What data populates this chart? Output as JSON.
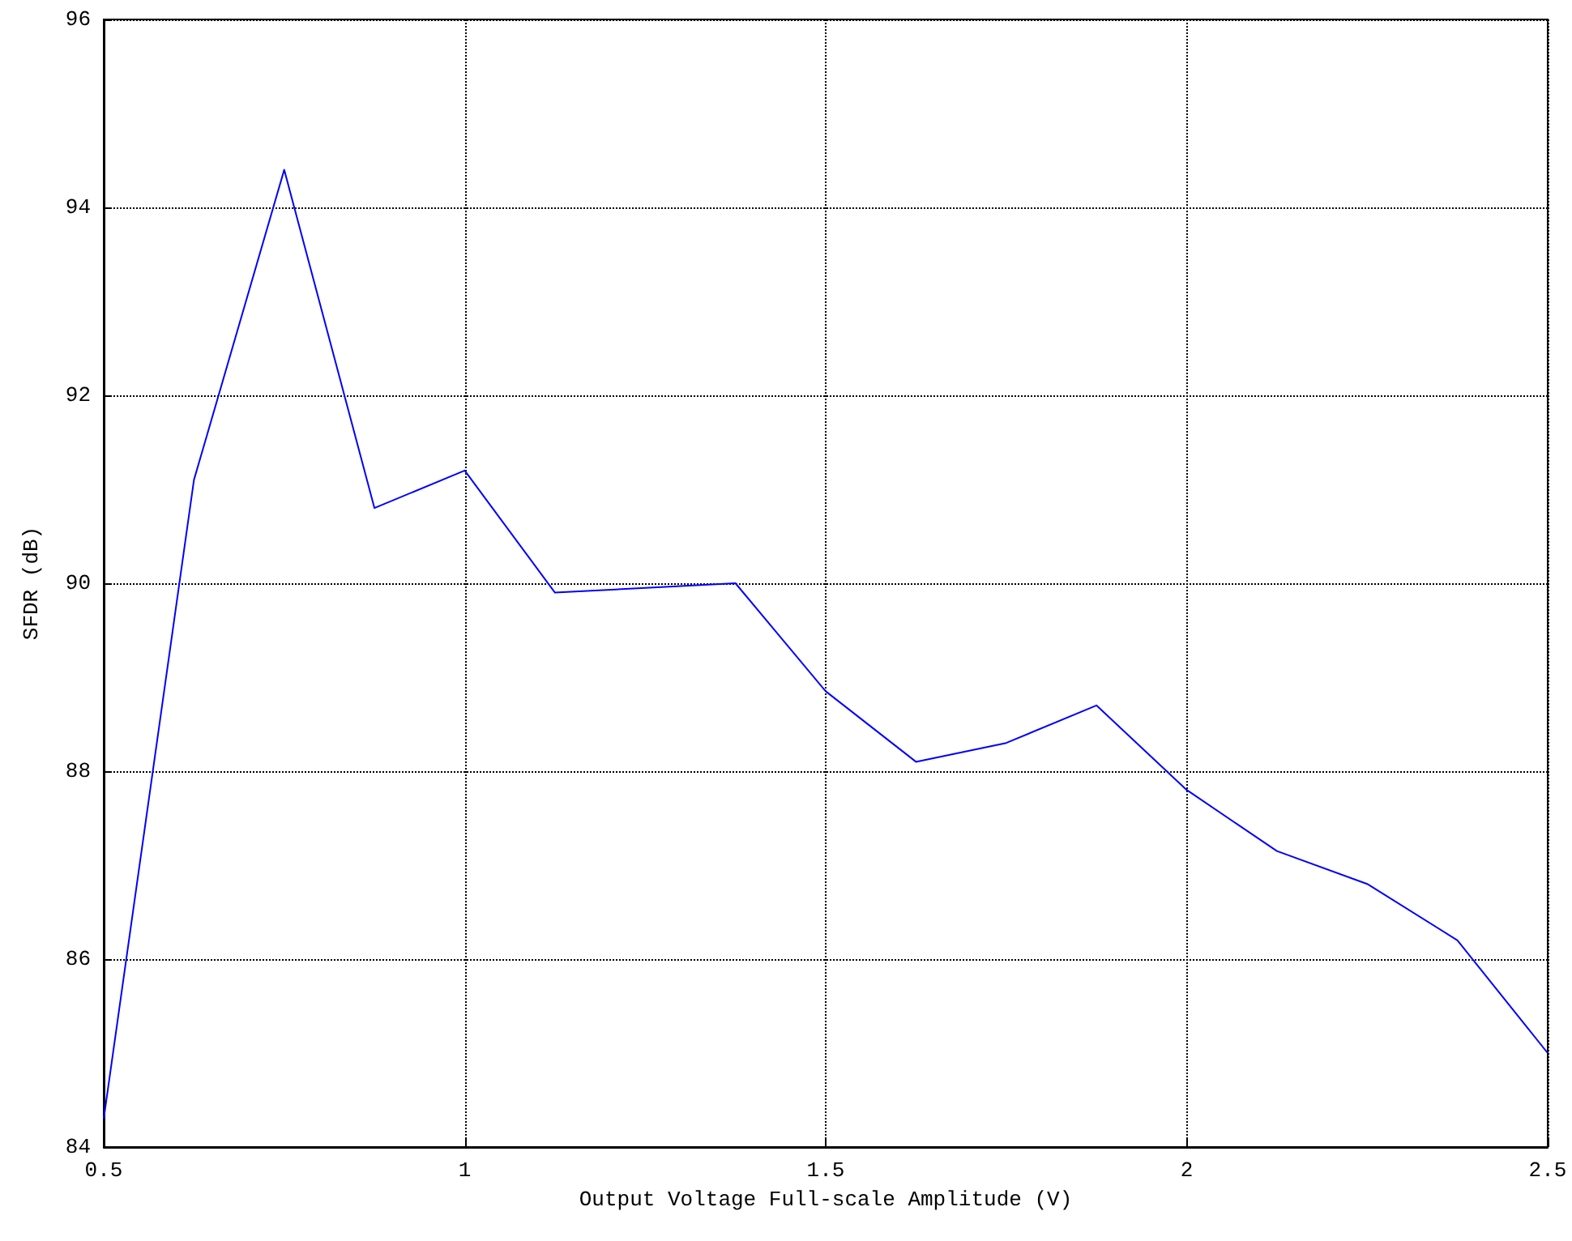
{
  "chart_data": {
    "type": "line",
    "xlabel": "Output Voltage Full-scale Amplitude (V)",
    "ylabel": "SFDR (dB)",
    "x": [
      0.5,
      0.625,
      0.75,
      0.875,
      1.0,
      1.125,
      1.25,
      1.375,
      1.5,
      1.625,
      1.75,
      1.875,
      2.0,
      2.125,
      2.25,
      2.375,
      2.5
    ],
    "series": [
      {
        "color": "#0000ff",
        "values": [
          84.3,
          91.1,
          94.4,
          90.8,
          91.2,
          89.9,
          89.95,
          90.0,
          88.85,
          88.1,
          88.3,
          88.7,
          87.8,
          87.15,
          86.8,
          86.2,
          85.0
        ]
      }
    ],
    "xlim": [
      0.5,
      2.5
    ],
    "xticks": [
      {
        "value": 0.5,
        "label": "0.5"
      },
      1,
      {
        "value": 1.5,
        "label": "1.5"
      },
      2,
      {
        "value": 2.5,
        "label": "2.5"
      }
    ],
    "ylim": [
      84,
      96
    ],
    "yticks": [
      84,
      86,
      88,
      90,
      92,
      94,
      96
    ],
    "grid": true,
    "marker": "none",
    "line_style": "solid"
  }
}
